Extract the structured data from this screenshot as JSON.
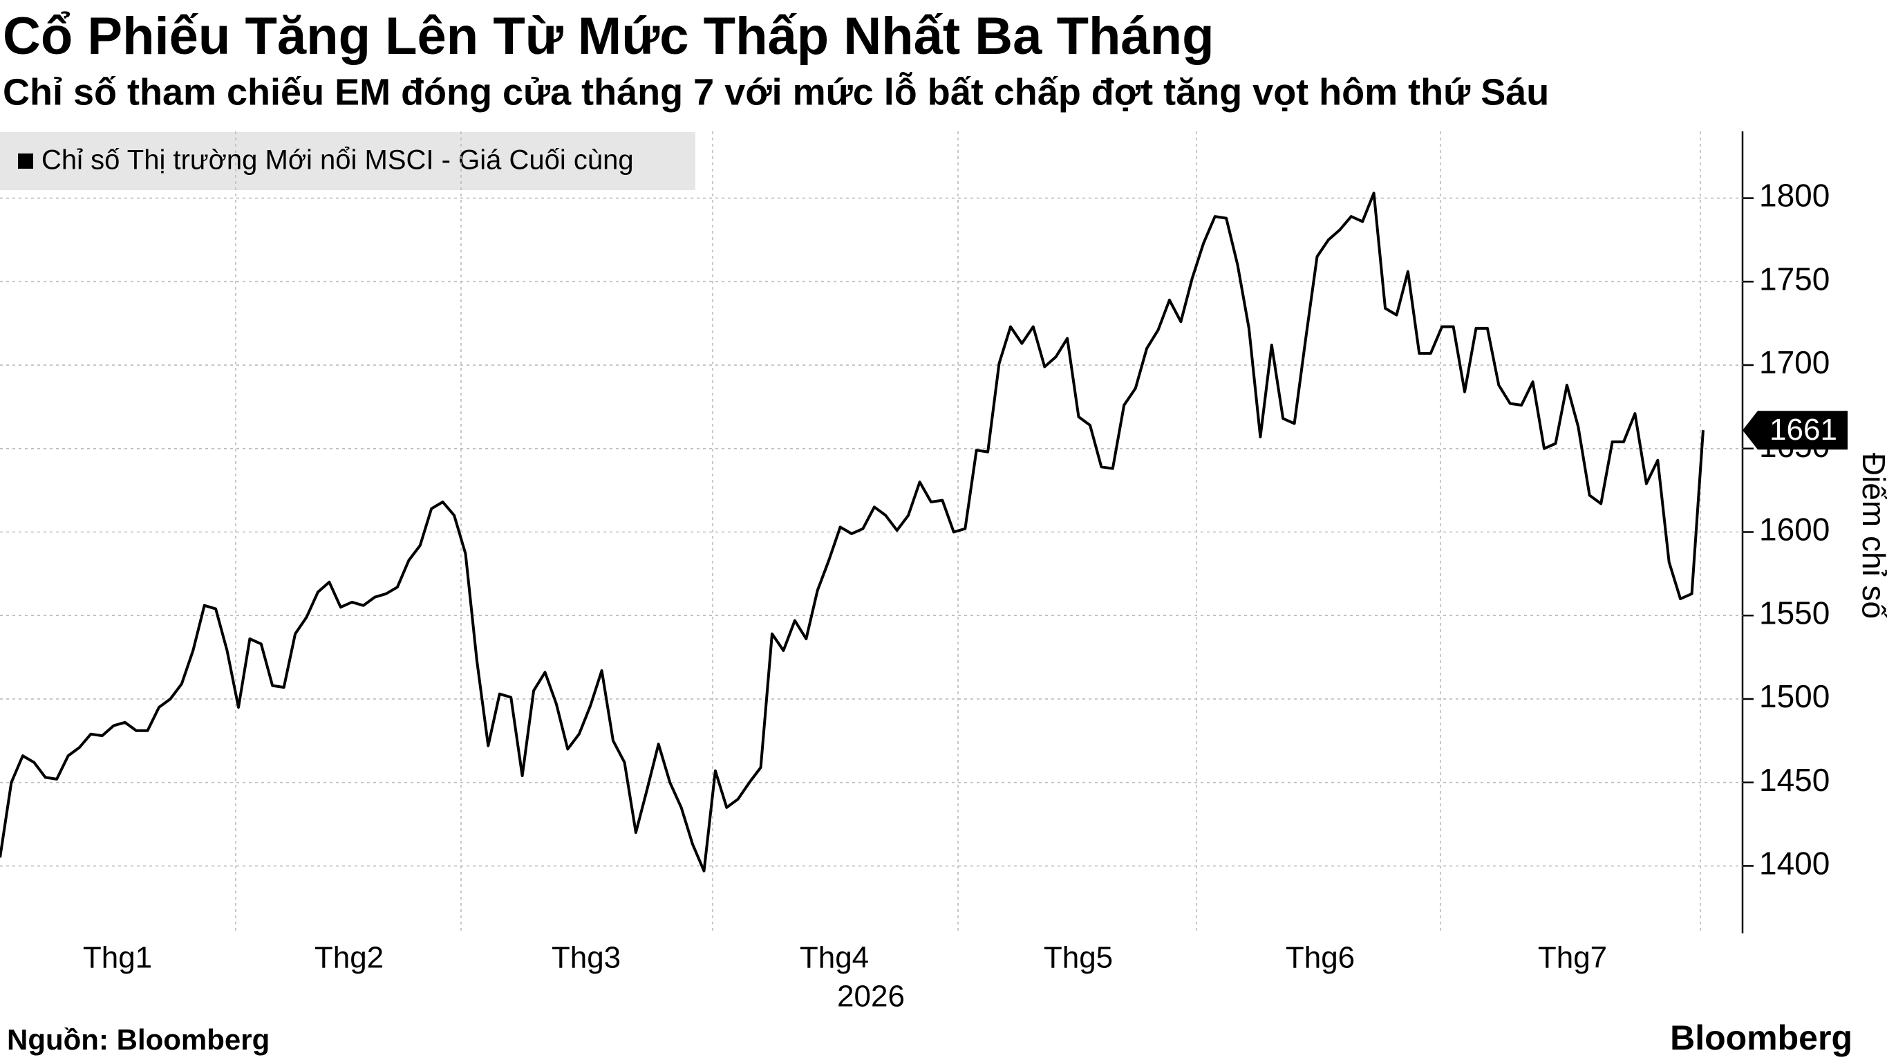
{
  "chart_data": {
    "type": "line",
    "title": "Cổ Phiếu Tăng Lên Từ Mức Thấp Nhất Ba Tháng",
    "subtitle": "Chỉ số tham chiếu EM đóng cửa tháng 7 với mức lỗ bất chấp đợt tăng vọt hôm thứ Sáu",
    "month_labels": [
      "Thg1",
      "Thg2",
      "Thg3",
      "Thg4",
      "Thg5",
      "Thg6",
      "Thg7"
    ],
    "year_label": "2026",
    "y_axis_label": "Điểm chỉ số",
    "source": "Nguồn: Bloomberg",
    "brand": "Bloomberg",
    "series": [
      {
        "name": "Chỉ số Thị trường Mới nổi MSCI - Giá Cuối cùng",
        "color": "#000000",
        "values": [
          1405,
          1450,
          1466,
          1462,
          1453,
          1452,
          1466,
          1471,
          1479,
          1478,
          1484,
          1486,
          1481,
          1481,
          1495,
          1500,
          1509,
          1529,
          1556,
          1554,
          1529,
          1495,
          1536,
          1533,
          1508,
          1507,
          1539,
          1549,
          1564,
          1570,
          1555,
          1558,
          1556,
          1561,
          1563,
          1567,
          1583,
          1592,
          1614,
          1618,
          1610,
          1587,
          1523,
          1472,
          1503,
          1501,
          1454,
          1505,
          1516,
          1497,
          1470,
          1479,
          1496,
          1517,
          1475,
          1462,
          1420,
          1446,
          1473,
          1450,
          1435,
          1413,
          1397,
          1457,
          1435,
          1440,
          1450,
          1459,
          1539,
          1529,
          1547,
          1536,
          1565,
          1583,
          1603,
          1599,
          1602,
          1615,
          1610,
          1601,
          1610,
          1630,
          1618,
          1619,
          1600,
          1602,
          1649,
          1648,
          1701,
          1723,
          1713,
          1723,
          1699,
          1705,
          1716,
          1669,
          1664,
          1639,
          1638,
          1676,
          1686,
          1710,
          1721,
          1739,
          1726,
          1752,
          1773,
          1789,
          1788,
          1760,
          1722,
          1657,
          1712,
          1668,
          1665,
          1716,
          1765,
          1775,
          1781,
          1789,
          1786,
          1803,
          1734,
          1730,
          1756,
          1707,
          1707,
          1723,
          1723,
          1684,
          1722,
          1722,
          1688,
          1677,
          1676,
          1690,
          1650,
          1653,
          1688,
          1663,
          1622,
          1617,
          1654,
          1654,
          1671,
          1629,
          1643,
          1582,
          1560,
          1563,
          1661
        ]
      }
    ],
    "ylim": [
      1360,
      1840
    ],
    "yticks": [
      1400,
      1450,
      1500,
      1550,
      1600,
      1650,
      1700,
      1750,
      1800
    ],
    "grid": true
  }
}
